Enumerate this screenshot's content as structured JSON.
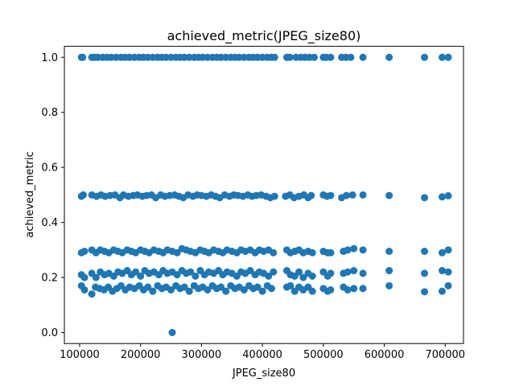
{
  "chart_data": {
    "type": "scatter",
    "title": "achieved_metric(JPEG_size80)",
    "xlabel": "JPEG_size80",
    "ylabel": "achieved_metric",
    "xlim": [
      75000,
      730000
    ],
    "ylim": [
      -0.04,
      1.04
    ],
    "xticks": [
      100000,
      200000,
      300000,
      400000,
      500000,
      600000,
      700000
    ],
    "xtick_labels": [
      "100000",
      "200000",
      "300000",
      "400000",
      "500000",
      "600000",
      "700000"
    ],
    "yticks": [
      0.0,
      0.2,
      0.4,
      0.6,
      0.8,
      1.0
    ],
    "ytick_labels": [
      "0.0",
      "0.2",
      "0.4",
      "0.6",
      "0.8",
      "1.0"
    ],
    "grid": false,
    "marker_color": "#1f77b4",
    "series": [
      {
        "points": [
          [
            103000,
            1.0
          ],
          [
            105000,
            1.0
          ],
          [
            120000,
            1.0
          ],
          [
            125000,
            1.0
          ],
          [
            130000,
            1.0
          ],
          [
            138000,
            1.0
          ],
          [
            145000,
            1.0
          ],
          [
            152000,
            1.0
          ],
          [
            160000,
            1.0
          ],
          [
            168000,
            1.0
          ],
          [
            175000,
            1.0
          ],
          [
            182000,
            1.0
          ],
          [
            190000,
            1.0
          ],
          [
            198000,
            1.0
          ],
          [
            205000,
            1.0
          ],
          [
            212000,
            1.0
          ],
          [
            220000,
            1.0
          ],
          [
            228000,
            1.0
          ],
          [
            235000,
            1.0
          ],
          [
            242000,
            1.0
          ],
          [
            250000,
            1.0
          ],
          [
            258000,
            1.0
          ],
          [
            265000,
            1.0
          ],
          [
            272000,
            1.0
          ],
          [
            280000,
            1.0
          ],
          [
            288000,
            1.0
          ],
          [
            295000,
            1.0
          ],
          [
            302000,
            1.0
          ],
          [
            310000,
            1.0
          ],
          [
            318000,
            1.0
          ],
          [
            325000,
            1.0
          ],
          [
            332000,
            1.0
          ],
          [
            340000,
            1.0
          ],
          [
            348000,
            1.0
          ],
          [
            355000,
            1.0
          ],
          [
            362000,
            1.0
          ],
          [
            370000,
            1.0
          ],
          [
            378000,
            1.0
          ],
          [
            385000,
            1.0
          ],
          [
            392000,
            1.0
          ],
          [
            400000,
            1.0
          ],
          [
            408000,
            1.0
          ],
          [
            415000,
            1.0
          ],
          [
            420000,
            1.0
          ],
          [
            440000,
            1.0
          ],
          [
            445000,
            1.0
          ],
          [
            455000,
            1.0
          ],
          [
            463000,
            1.0
          ],
          [
            470000,
            1.0
          ],
          [
            477000,
            1.0
          ],
          [
            485000,
            1.0
          ],
          [
            500000,
            1.0
          ],
          [
            505000,
            1.0
          ],
          [
            512000,
            1.0
          ],
          [
            530000,
            1.0
          ],
          [
            537000,
            1.0
          ],
          [
            545000,
            1.0
          ],
          [
            565000,
            1.0
          ],
          [
            608000,
            1.0
          ],
          [
            666000,
            1.0
          ],
          [
            695000,
            1.0
          ],
          [
            705000,
            1.0
          ],
          [
            103000,
            0.495
          ],
          [
            106000,
            0.5
          ],
          [
            120000,
            0.5
          ],
          [
            128000,
            0.495
          ],
          [
            135000,
            0.5
          ],
          [
            142000,
            0.495
          ],
          [
            150000,
            0.498
          ],
          [
            158000,
            0.5
          ],
          [
            166000,
            0.49
          ],
          [
            172000,
            0.5
          ],
          [
            180000,
            0.495
          ],
          [
            188000,
            0.498
          ],
          [
            195000,
            0.5
          ],
          [
            203000,
            0.495
          ],
          [
            210000,
            0.498
          ],
          [
            218000,
            0.5
          ],
          [
            225000,
            0.49
          ],
          [
            233000,
            0.5
          ],
          [
            240000,
            0.495
          ],
          [
            248000,
            0.498
          ],
          [
            256000,
            0.5
          ],
          [
            263000,
            0.495
          ],
          [
            270000,
            0.49
          ],
          [
            278000,
            0.5
          ],
          [
            286000,
            0.495
          ],
          [
            293000,
            0.5
          ],
          [
            300000,
            0.498
          ],
          [
            308000,
            0.495
          ],
          [
            316000,
            0.5
          ],
          [
            323000,
            0.495
          ],
          [
            330000,
            0.49
          ],
          [
            338000,
            0.5
          ],
          [
            346000,
            0.495
          ],
          [
            353000,
            0.5
          ],
          [
            360000,
            0.498
          ],
          [
            368000,
            0.495
          ],
          [
            376000,
            0.5
          ],
          [
            383000,
            0.495
          ],
          [
            390000,
            0.498
          ],
          [
            398000,
            0.5
          ],
          [
            406000,
            0.495
          ],
          [
            413000,
            0.49
          ],
          [
            420000,
            0.495
          ],
          [
            438000,
            0.495
          ],
          [
            445000,
            0.5
          ],
          [
            452000,
            0.49
          ],
          [
            460000,
            0.495
          ],
          [
            468000,
            0.5
          ],
          [
            475000,
            0.49
          ],
          [
            480000,
            0.498
          ],
          [
            500000,
            0.5
          ],
          [
            506000,
            0.495
          ],
          [
            512000,
            0.498
          ],
          [
            530000,
            0.49
          ],
          [
            538000,
            0.498
          ],
          [
            548000,
            0.5
          ],
          [
            565000,
            0.5
          ],
          [
            608000,
            0.498
          ],
          [
            666000,
            0.49
          ],
          [
            695000,
            0.493
          ],
          [
            705000,
            0.497
          ],
          [
            103000,
            0.29
          ],
          [
            108000,
            0.295
          ],
          [
            120000,
            0.3
          ],
          [
            127000,
            0.29
          ],
          [
            134000,
            0.3
          ],
          [
            141000,
            0.295
          ],
          [
            148000,
            0.29
          ],
          [
            156000,
            0.3
          ],
          [
            163000,
            0.295
          ],
          [
            170000,
            0.29
          ],
          [
            178000,
            0.3
          ],
          [
            185000,
            0.295
          ],
          [
            192000,
            0.29
          ],
          [
            200000,
            0.3
          ],
          [
            207000,
            0.295
          ],
          [
            214000,
            0.29
          ],
          [
            222000,
            0.3
          ],
          [
            230000,
            0.295
          ],
          [
            237000,
            0.29
          ],
          [
            244000,
            0.3
          ],
          [
            252000,
            0.295
          ],
          [
            260000,
            0.29
          ],
          [
            268000,
            0.305
          ],
          [
            275000,
            0.3
          ],
          [
            282000,
            0.295
          ],
          [
            290000,
            0.29
          ],
          [
            298000,
            0.3
          ],
          [
            305000,
            0.295
          ],
          [
            312000,
            0.29
          ],
          [
            320000,
            0.3
          ],
          [
            328000,
            0.295
          ],
          [
            335000,
            0.29
          ],
          [
            342000,
            0.3
          ],
          [
            350000,
            0.295
          ],
          [
            358000,
            0.29
          ],
          [
            365000,
            0.3
          ],
          [
            372000,
            0.295
          ],
          [
            380000,
            0.3
          ],
          [
            388000,
            0.29
          ],
          [
            395000,
            0.3
          ],
          [
            402000,
            0.295
          ],
          [
            410000,
            0.3
          ],
          [
            418000,
            0.29
          ],
          [
            440000,
            0.3
          ],
          [
            446000,
            0.29
          ],
          [
            453000,
            0.295
          ],
          [
            460000,
            0.3
          ],
          [
            467000,
            0.29
          ],
          [
            475000,
            0.295
          ],
          [
            482000,
            0.29
          ],
          [
            500000,
            0.295
          ],
          [
            507000,
            0.29
          ],
          [
            512000,
            0.29
          ],
          [
            533000,
            0.295
          ],
          [
            540000,
            0.3
          ],
          [
            550000,
            0.305
          ],
          [
            565000,
            0.3
          ],
          [
            608000,
            0.295
          ],
          [
            666000,
            0.295
          ],
          [
            695000,
            0.29
          ],
          [
            705000,
            0.3
          ],
          [
            103000,
            0.21
          ],
          [
            108000,
            0.2
          ],
          [
            120000,
            0.215
          ],
          [
            127000,
            0.2
          ],
          [
            134000,
            0.22
          ],
          [
            141000,
            0.21
          ],
          [
            148000,
            0.215
          ],
          [
            156000,
            0.205
          ],
          [
            163000,
            0.22
          ],
          [
            170000,
            0.215
          ],
          [
            178000,
            0.225
          ],
          [
            185000,
            0.21
          ],
          [
            192000,
            0.22
          ],
          [
            200000,
            0.205
          ],
          [
            207000,
            0.225
          ],
          [
            214000,
            0.215
          ],
          [
            222000,
            0.22
          ],
          [
            230000,
            0.21
          ],
          [
            237000,
            0.225
          ],
          [
            244000,
            0.215
          ],
          [
            252000,
            0.22
          ],
          [
            260000,
            0.21
          ],
          [
            268000,
            0.225
          ],
          [
            275000,
            0.215
          ],
          [
            282000,
            0.22
          ],
          [
            290000,
            0.205
          ],
          [
            298000,
            0.225
          ],
          [
            305000,
            0.21
          ],
          [
            312000,
            0.22
          ],
          [
            320000,
            0.215
          ],
          [
            328000,
            0.225
          ],
          [
            335000,
            0.21
          ],
          [
            342000,
            0.22
          ],
          [
            350000,
            0.215
          ],
          [
            358000,
            0.205
          ],
          [
            365000,
            0.22
          ],
          [
            372000,
            0.215
          ],
          [
            380000,
            0.225
          ],
          [
            388000,
            0.21
          ],
          [
            395000,
            0.22
          ],
          [
            402000,
            0.215
          ],
          [
            410000,
            0.205
          ],
          [
            418000,
            0.22
          ],
          [
            440000,
            0.225
          ],
          [
            446000,
            0.21
          ],
          [
            453000,
            0.205
          ],
          [
            460000,
            0.22
          ],
          [
            467000,
            0.2
          ],
          [
            475000,
            0.215
          ],
          [
            482000,
            0.205
          ],
          [
            500000,
            0.22
          ],
          [
            507000,
            0.205
          ],
          [
            512000,
            0.215
          ],
          [
            533000,
            0.215
          ],
          [
            540000,
            0.22
          ],
          [
            550000,
            0.225
          ],
          [
            565000,
            0.215
          ],
          [
            608000,
            0.225
          ],
          [
            666000,
            0.215
          ],
          [
            695000,
            0.225
          ],
          [
            705000,
            0.22
          ],
          [
            103000,
            0.17
          ],
          [
            108000,
            0.155
          ],
          [
            120000,
            0.14
          ],
          [
            126000,
            0.165
          ],
          [
            133000,
            0.16
          ],
          [
            140000,
            0.155
          ],
          [
            147000,
            0.165
          ],
          [
            154000,
            0.15
          ],
          [
            161000,
            0.16
          ],
          [
            168000,
            0.17
          ],
          [
            175000,
            0.155
          ],
          [
            182000,
            0.165
          ],
          [
            190000,
            0.16
          ],
          [
            198000,
            0.17
          ],
          [
            205000,
            0.155
          ],
          [
            212000,
            0.165
          ],
          [
            220000,
            0.15
          ],
          [
            228000,
            0.17
          ],
          [
            235000,
            0.16
          ],
          [
            242000,
            0.165
          ],
          [
            250000,
            0.155
          ],
          [
            258000,
            0.17
          ],
          [
            265000,
            0.16
          ],
          [
            272000,
            0.165
          ],
          [
            280000,
            0.15
          ],
          [
            288000,
            0.17
          ],
          [
            295000,
            0.16
          ],
          [
            302000,
            0.165
          ],
          [
            310000,
            0.155
          ],
          [
            318000,
            0.17
          ],
          [
            325000,
            0.16
          ],
          [
            332000,
            0.165
          ],
          [
            340000,
            0.15
          ],
          [
            348000,
            0.17
          ],
          [
            355000,
            0.16
          ],
          [
            362000,
            0.165
          ],
          [
            370000,
            0.155
          ],
          [
            378000,
            0.17
          ],
          [
            385000,
            0.16
          ],
          [
            392000,
            0.165
          ],
          [
            400000,
            0.15
          ],
          [
            408000,
            0.17
          ],
          [
            415000,
            0.16
          ],
          [
            440000,
            0.165
          ],
          [
            446000,
            0.17
          ],
          [
            453000,
            0.15
          ],
          [
            460000,
            0.165
          ],
          [
            467000,
            0.155
          ],
          [
            475000,
            0.165
          ],
          [
            482000,
            0.15
          ],
          [
            500000,
            0.16
          ],
          [
            507000,
            0.15
          ],
          [
            512000,
            0.155
          ],
          [
            533000,
            0.165
          ],
          [
            540000,
            0.155
          ],
          [
            550000,
            0.16
          ],
          [
            565000,
            0.16
          ],
          [
            608000,
            0.17
          ],
          [
            666000,
            0.148
          ],
          [
            695000,
            0.15
          ],
          [
            705000,
            0.17
          ],
          [
            252000,
            0.0
          ]
        ]
      }
    ]
  }
}
